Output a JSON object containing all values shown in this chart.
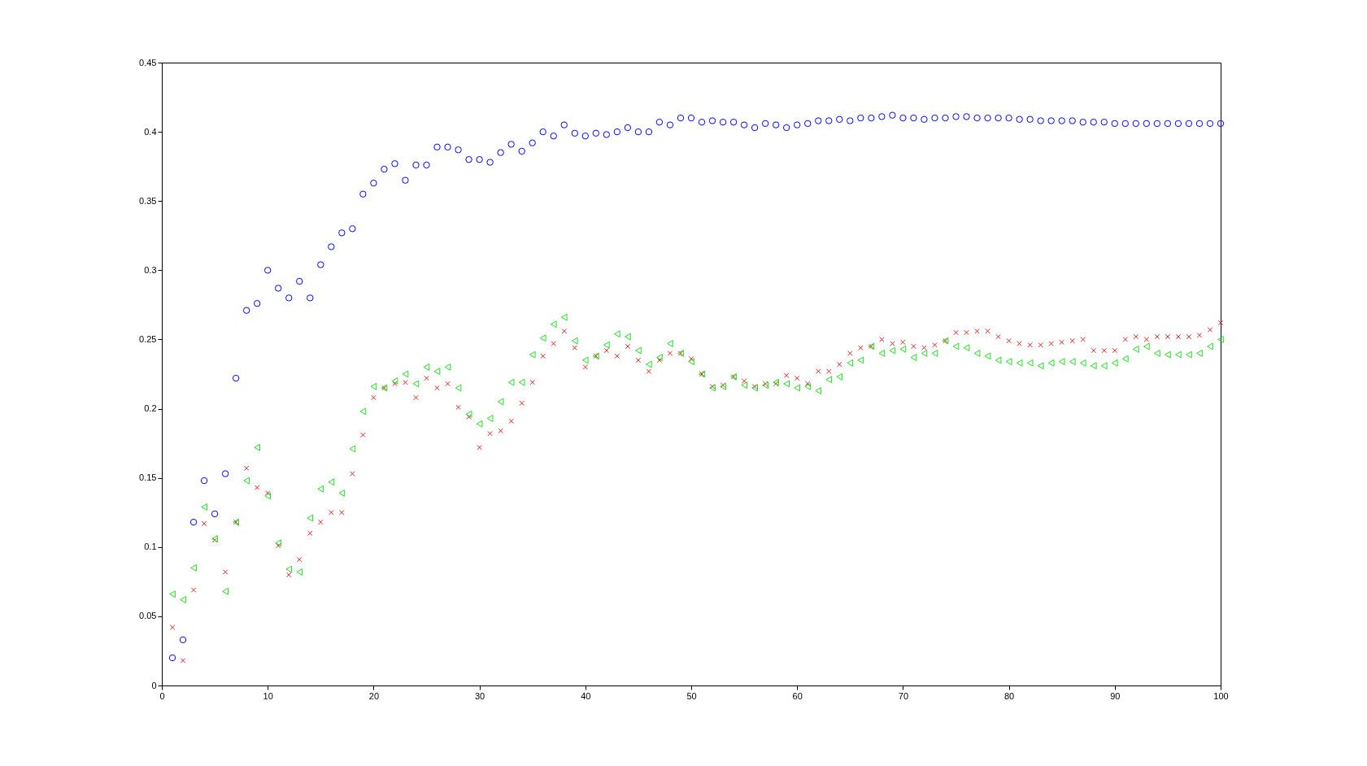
{
  "chart_data": {
    "type": "scatter",
    "x": [
      1,
      2,
      3,
      4,
      5,
      6,
      7,
      8,
      9,
      10,
      11,
      12,
      13,
      14,
      15,
      16,
      17,
      18,
      19,
      20,
      21,
      22,
      23,
      24,
      25,
      26,
      27,
      28,
      29,
      30,
      31,
      32,
      33,
      34,
      35,
      36,
      37,
      38,
      39,
      40,
      41,
      42,
      43,
      44,
      45,
      46,
      47,
      48,
      49,
      50,
      51,
      52,
      53,
      54,
      55,
      56,
      57,
      58,
      59,
      60,
      61,
      62,
      63,
      64,
      65,
      66,
      67,
      68,
      69,
      70,
      71,
      72,
      73,
      74,
      75,
      76,
      77,
      78,
      79,
      80,
      81,
      82,
      83,
      84,
      85,
      86,
      87,
      88,
      89,
      90,
      91,
      92,
      93,
      94,
      95,
      96,
      97,
      98,
      99,
      100
    ],
    "series": [
      {
        "color": "#0000ff",
        "marker": "circle",
        "values": [
          0.02,
          0.033,
          0.118,
          0.148,
          0.124,
          0.153,
          0.222,
          0.271,
          0.276,
          0.3,
          0.287,
          0.28,
          0.292,
          0.28,
          0.304,
          0.317,
          0.327,
          0.33,
          0.355,
          0.363,
          0.373,
          0.377,
          0.365,
          0.376,
          0.376,
          0.389,
          0.389,
          0.387,
          0.38,
          0.38,
          0.378,
          0.385,
          0.391,
          0.386,
          0.392,
          0.4,
          0.397,
          0.405,
          0.399,
          0.397,
          0.399,
          0.398,
          0.4,
          0.403,
          0.4,
          0.4,
          0.407,
          0.405,
          0.41,
          0.41,
          0.407,
          0.408,
          0.407,
          0.407,
          0.405,
          0.403,
          0.406,
          0.405,
          0.403,
          0.405,
          0.406,
          0.408,
          0.408,
          0.409,
          0.408,
          0.41,
          0.41,
          0.411,
          0.412,
          0.41,
          0.41,
          0.409,
          0.41,
          0.41,
          0.411,
          0.411,
          0.41,
          0.41,
          0.41,
          0.41,
          0.409,
          0.409,
          0.408,
          0.408,
          0.408,
          0.408,
          0.407,
          0.407,
          0.407,
          0.406,
          0.406,
          0.406,
          0.406,
          0.406,
          0.406,
          0.406,
          0.406,
          0.406,
          0.406,
          0.406
        ]
      },
      {
        "color": "#e02020",
        "marker": "cross",
        "values": [
          0.042,
          0.018,
          0.069,
          0.117,
          0.105,
          0.082,
          0.118,
          0.157,
          0.143,
          0.139,
          0.101,
          0.08,
          0.091,
          0.11,
          0.118,
          0.125,
          0.125,
          0.153,
          0.181,
          0.208,
          0.215,
          0.218,
          0.219,
          0.208,
          0.222,
          0.215,
          0.218,
          0.201,
          0.194,
          0.172,
          0.182,
          0.184,
          0.191,
          0.204,
          0.219,
          0.238,
          0.247,
          0.256,
          0.244,
          0.23,
          0.238,
          0.242,
          0.238,
          0.245,
          0.235,
          0.227,
          0.235,
          0.24,
          0.24,
          0.236,
          0.225,
          0.216,
          0.217,
          0.223,
          0.22,
          0.216,
          0.218,
          0.218,
          0.224,
          0.222,
          0.218,
          0.227,
          0.227,
          0.232,
          0.24,
          0.244,
          0.245,
          0.25,
          0.247,
          0.248,
          0.245,
          0.244,
          0.246,
          0.249,
          0.255,
          0.255,
          0.256,
          0.256,
          0.252,
          0.249,
          0.247,
          0.246,
          0.246,
          0.247,
          0.248,
          0.249,
          0.25,
          0.242,
          0.242,
          0.242,
          0.25,
          0.252,
          0.25,
          0.252,
          0.252,
          0.252,
          0.252,
          0.253,
          0.257,
          0.262
        ]
      },
      {
        "color": "#22dd22",
        "marker": "triangle",
        "values": [
          0.066,
          0.062,
          0.085,
          0.129,
          0.106,
          0.068,
          0.118,
          0.148,
          0.172,
          0.137,
          0.103,
          0.084,
          0.082,
          0.121,
          0.142,
          0.147,
          0.139,
          0.171,
          0.198,
          0.216,
          0.215,
          0.22,
          0.225,
          0.218,
          0.23,
          0.227,
          0.23,
          0.215,
          0.196,
          0.189,
          0.193,
          0.205,
          0.219,
          0.219,
          0.239,
          0.251,
          0.261,
          0.266,
          0.249,
          0.235,
          0.238,
          0.246,
          0.254,
          0.252,
          0.242,
          0.232,
          0.237,
          0.247,
          0.24,
          0.234,
          0.225,
          0.215,
          0.216,
          0.223,
          0.217,
          0.215,
          0.217,
          0.219,
          0.218,
          0.215,
          0.216,
          0.213,
          0.221,
          0.223,
          0.233,
          0.235,
          0.245,
          0.24,
          0.242,
          0.243,
          0.237,
          0.24,
          0.24,
          0.249,
          0.245,
          0.244,
          0.24,
          0.238,
          0.235,
          0.234,
          0.233,
          0.233,
          0.231,
          0.233,
          0.234,
          0.234,
          0.233,
          0.231,
          0.231,
          0.233,
          0.236,
          0.243,
          0.245,
          0.24,
          0.239,
          0.239,
          0.239,
          0.24,
          0.245,
          0.25
        ]
      }
    ],
    "xlim": [
      0,
      100
    ],
    "xticks": [
      0,
      10,
      20,
      30,
      40,
      50,
      60,
      70,
      80,
      90,
      100
    ],
    "ylim": [
      0,
      0.45
    ],
    "yticks": [
      0,
      0.05,
      0.1,
      0.15,
      0.2,
      0.25,
      0.3,
      0.35,
      0.4,
      0.45
    ],
    "grid": false
  }
}
